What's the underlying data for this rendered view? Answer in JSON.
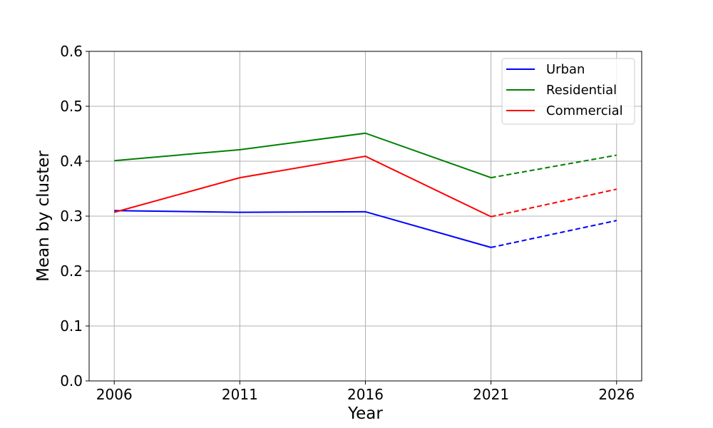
{
  "chart_data": {
    "type": "line",
    "title": "",
    "xlabel": "Year",
    "ylabel": "Mean by cluster",
    "x": [
      2006,
      2011,
      2016,
      2021,
      2026
    ],
    "x_ticks": [
      "2006",
      "2011",
      "2016",
      "2021",
      "2026"
    ],
    "y_ticks": [
      "0.0",
      "0.1",
      "0.2",
      "0.3",
      "0.4",
      "0.5",
      "0.6"
    ],
    "xlim": [
      2005,
      2027
    ],
    "ylim": [
      0.0,
      0.6
    ],
    "grid": true,
    "legend_position": "top-right",
    "projection_start_x": 2021,
    "series": [
      {
        "name": "Urban",
        "color": "#0000ff",
        "values": [
          0.31,
          0.307,
          0.308,
          0.243,
          0.292
        ]
      },
      {
        "name": "Residential",
        "color": "#008000",
        "values": [
          0.401,
          0.421,
          0.451,
          0.37,
          0.411
        ]
      },
      {
        "name": "Commercial",
        "color": "#ff0000",
        "values": [
          0.307,
          0.37,
          0.409,
          0.299,
          0.349
        ]
      }
    ]
  }
}
